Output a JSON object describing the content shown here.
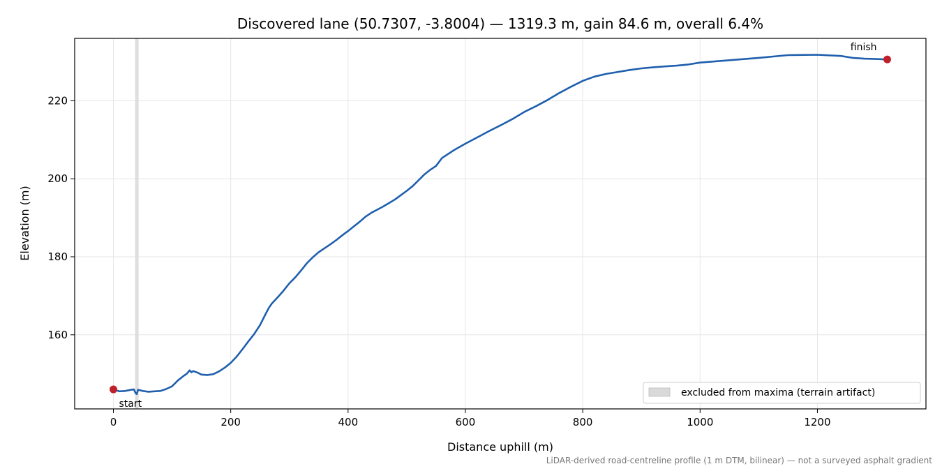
{
  "chart_data": {
    "type": "line",
    "title": "Discovered lane (50.7307, -3.8004) — 1319.3 m, gain 84.6 m, overall 6.4%",
    "xlabel": "Distance uphill (m)",
    "ylabel": "Elevation (m)",
    "xlim": [
      -66,
      1385
    ],
    "ylim": [
      141,
      236
    ],
    "xticks": [
      0,
      200,
      400,
      600,
      800,
      1000,
      1200
    ],
    "yticks": [
      160,
      180,
      200,
      220
    ],
    "grid": true,
    "legend_position": "lower-right",
    "legend": [
      {
        "label": "excluded from maxima (terrain artifact)",
        "color": "#d9d9d9"
      }
    ],
    "excluded_band": {
      "x_start": 37,
      "x_end": 43
    },
    "series": [
      {
        "color": "#1f5fad",
        "x": [
          0,
          10,
          20,
          30,
          35,
          38,
          40,
          42,
          45,
          50,
          60,
          70,
          80,
          90,
          100,
          110,
          120,
          125,
          130,
          133,
          136,
          140,
          145,
          150,
          160,
          170,
          180,
          190,
          200,
          210,
          220,
          230,
          240,
          250,
          260,
          265,
          270,
          280,
          290,
          300,
          310,
          320,
          330,
          340,
          350,
          360,
          370,
          380,
          390,
          400,
          410,
          420,
          430,
          440,
          450,
          460,
          470,
          480,
          490,
          500,
          510,
          520,
          530,
          540,
          550,
          560,
          580,
          600,
          620,
          640,
          660,
          680,
          700,
          720,
          740,
          760,
          780,
          800,
          820,
          840,
          860,
          880,
          900,
          920,
          940,
          960,
          980,
          1000,
          1050,
          1100,
          1150,
          1200,
          1240,
          1260,
          1280,
          1300,
          1319
        ],
        "y": [
          146.0,
          145.5,
          145.6,
          145.9,
          146.0,
          145.0,
          144.8,
          145.9,
          145.8,
          145.6,
          145.4,
          145.5,
          145.6,
          146.1,
          146.8,
          148.3,
          149.5,
          150.0,
          150.9,
          150.4,
          150.7,
          150.5,
          150.2,
          149.8,
          149.7,
          149.9,
          150.6,
          151.6,
          152.8,
          154.4,
          156.3,
          158.3,
          160.2,
          162.5,
          165.5,
          166.9,
          168.0,
          169.6,
          171.3,
          173.2,
          174.7,
          176.5,
          178.4,
          179.9,
          181.2,
          182.2,
          183.2,
          184.3,
          185.5,
          186.6,
          187.8,
          189.0,
          190.3,
          191.3,
          192.1,
          192.9,
          193.8,
          194.7,
          195.8,
          196.9,
          198.1,
          199.6,
          201.1,
          202.3,
          203.3,
          205.3,
          207.3,
          209.0,
          210.6,
          212.2,
          213.7,
          215.3,
          217.1,
          218.6,
          220.2,
          222.0,
          223.6,
          225.1,
          226.2,
          226.9,
          227.4,
          227.9,
          228.3,
          228.6,
          228.8,
          229.0,
          229.3,
          229.8,
          230.4,
          231.0,
          231.7,
          231.8,
          231.5,
          231.0,
          230.8,
          230.7,
          230.6
        ]
      }
    ],
    "annotations": [
      {
        "text": "start",
        "x": 0,
        "y": 146.0,
        "marker_color": "#c0202a"
      },
      {
        "text": "finish",
        "x": 1319,
        "y": 230.6,
        "marker_color": "#c0202a"
      }
    ],
    "footnote": "LiDAR-derived road-centreline profile (1 m DTM, bilinear) — not a surveyed asphalt gradient"
  }
}
